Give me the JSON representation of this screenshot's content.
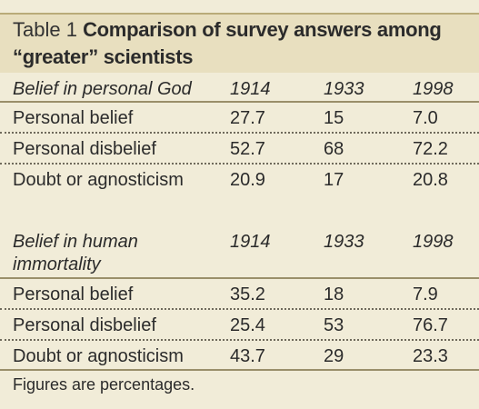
{
  "title": {
    "label": "Table 1",
    "line1": "Comparison of survey answers among",
    "line2": "“greater” scientists"
  },
  "section_god": {
    "header": "Belief in personal God",
    "years": [
      "1914",
      "1933",
      "1998"
    ],
    "rows": [
      {
        "label": "Personal belief",
        "values": [
          "27.7",
          "15",
          "7.0"
        ]
      },
      {
        "label": "Personal disbelief",
        "values": [
          "52.7",
          "68",
          "72.2"
        ]
      },
      {
        "label": "Doubt or agnosticism",
        "values": [
          "20.9",
          "17",
          "20.8"
        ]
      }
    ]
  },
  "section_immortality": {
    "header_line1": "Belief in human",
    "header_line2": "immortality",
    "years": [
      "1914",
      "1933",
      "1998"
    ],
    "rows": [
      {
        "label": "Personal belief",
        "values": [
          "35.2",
          "18",
          "7.9"
        ]
      },
      {
        "label": "Personal disbelief",
        "values": [
          "25.4",
          "53",
          "76.7"
        ]
      },
      {
        "label": "Doubt or agnosticism",
        "values": [
          "43.7",
          "29",
          "23.3"
        ]
      }
    ]
  },
  "footer": "Figures are percentages.",
  "colors": {
    "background": "#f1ecd8",
    "title_band": "#e8dfbf",
    "text": "#2b2b2b"
  }
}
